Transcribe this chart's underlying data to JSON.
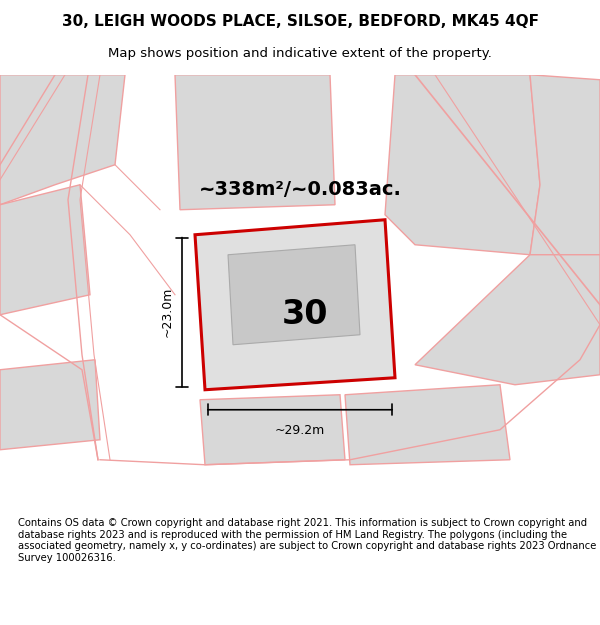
{
  "title_line1": "30, LEIGH WOODS PLACE, SILSOE, BEDFORD, MK45 4QF",
  "title_line2": "Map shows position and indicative extent of the property.",
  "area_text": "~338m²/~0.083ac.",
  "dim_width": "~29.2m",
  "dim_height": "~23.0m",
  "label_30": "30",
  "footer": "Contains OS data © Crown copyright and database right 2021. This information is subject to Crown copyright and database rights 2023 and is reproduced with the permission of HM Land Registry. The polygons (including the associated geometry, namely x, y co-ordinates) are subject to Crown copyright and database rights 2023 Ordnance Survey 100026316.",
  "bg_color": "#ffffff",
  "map_bg": "#f0f0f0",
  "plot_fill": "#e0e0e0",
  "plot_edge_color": "#cc0000",
  "neighbor_fill": "#d8d8d8",
  "neighbor_edge": "#f0a0a0",
  "road_color": "#f0a0a0",
  "title_color": "#000000",
  "footer_color": "#000000"
}
